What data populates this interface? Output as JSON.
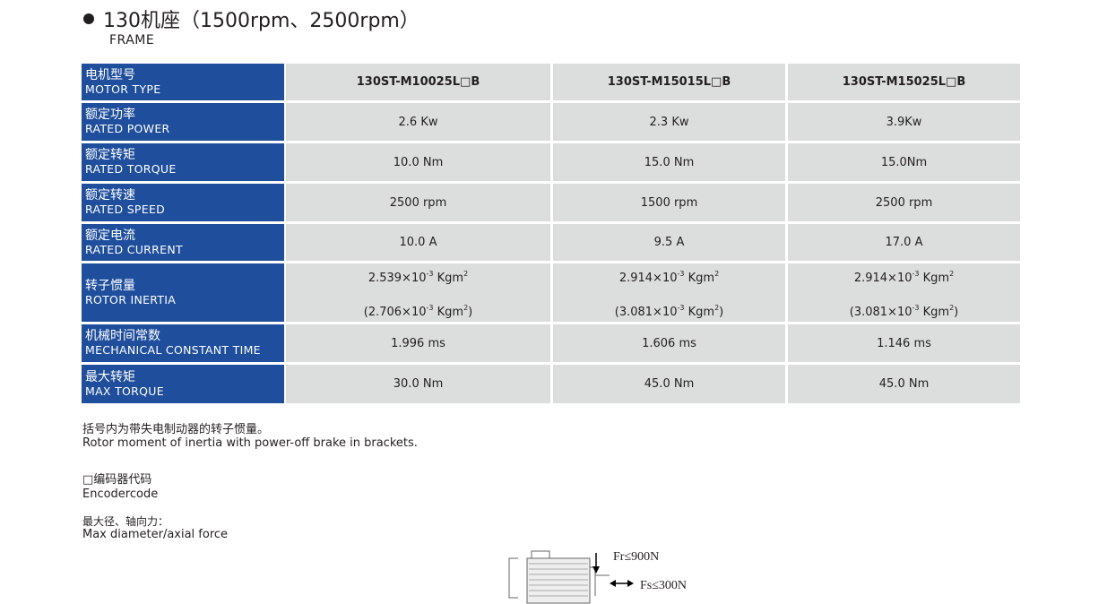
{
  "title": "130机座（1500rpm、2500rpm）",
  "subtitle": "FRAME",
  "table": {
    "rows": [
      {
        "cn": "电机型号",
        "en": "MOTOR TYPE",
        "values": [
          "130ST-M10025L□B",
          "130ST-M15015L□B",
          "130ST-M15025L□B"
        ]
      },
      {
        "cn": "额定功率",
        "en": "RATED POWER",
        "values": [
          "2.6 Kw",
          "2.3 Kw",
          "3.9Kw"
        ]
      },
      {
        "cn": "额定转矩",
        "en": "RATED TORQUE",
        "values": [
          "10.0 Nm",
          "15.0 Nm",
          "15.0Nm"
        ]
      },
      {
        "cn": "额定转速",
        "en": "RATED SPEED",
        "values": [
          "2500 rpm",
          "1500 rpm",
          "2500 rpm"
        ]
      },
      {
        "cn": "额定电流",
        "en": "RATED CURRENT",
        "values": [
          "10.0 A",
          "9.5 A",
          "17.0 A"
        ]
      },
      {
        "cn": "转子惯量",
        "en": "ROTOR INERTIA",
        "values": [
          {
            "main": "2.539×10",
            "exp": "-3",
            "unit": " Kgm",
            "unit_exp": "2",
            "brake": "(2.706×10",
            "brake_exp": "-3",
            "brake_unit": " Kgm",
            "brake_unit_exp": "2",
            "close": ")"
          },
          {
            "main": "2.914×10",
            "exp": "-3",
            "unit": " Kgm",
            "unit_exp": "2",
            "brake": "(3.081×10",
            "brake_exp": "-3",
            "brake_unit": " Kgm",
            "brake_unit_exp": "2",
            "close": ")"
          },
          {
            "main": "2.914×10",
            "exp": "-3",
            "unit": " Kgm",
            "unit_exp": "2",
            "brake": "(3.081×10",
            "brake_exp": "-3",
            "brake_unit": " Kgm",
            "brake_unit_exp": "2",
            "close": ")"
          }
        ]
      },
      {
        "cn": "机械时间常数",
        "en": "MECHANICAL CONSTANT TIME",
        "values": [
          "1.996 ms",
          "1.606 ms",
          "1.146 ms"
        ]
      },
      {
        "cn": "最大转矩",
        "en": "MAX TORQUE",
        "values": [
          "30.0 Nm",
          "45.0 Nm",
          "45.0 Nm"
        ]
      }
    ]
  },
  "notes": {
    "bracket_cn": "括号内为带失电制动器的转子惯量。",
    "bracket_en": "Rotor moment of inertia with power-off brake in brackets.",
    "encoder_cn": "□编码器代码",
    "encoder_en": "Encodercode",
    "force_cn": "最大径、轴向力：",
    "force_en": "Max diameter/axial force"
  },
  "diagram": {
    "fr": "Fr≤900N",
    "fs": "Fs≤300N"
  },
  "colors": {
    "label_bg": "#1f4e9c",
    "cell_bg": "#dcdddd"
  }
}
